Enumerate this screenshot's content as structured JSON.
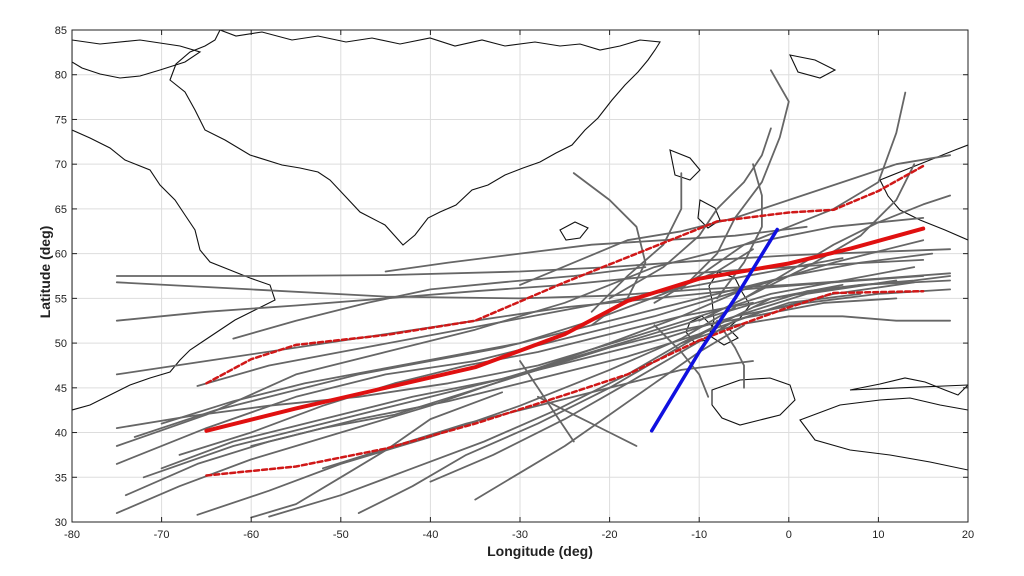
{
  "chart_data": {
    "type": "line",
    "title": "",
    "xlabel": "Longitude (deg)",
    "ylabel": "Latitude (deg)",
    "xlim": [
      -80,
      20
    ],
    "ylim": [
      30,
      85
    ],
    "xticks": [
      -80,
      -70,
      -60,
      -50,
      -40,
      -30,
      -20,
      -10,
      0,
      10,
      20
    ],
    "yticks": [
      30,
      35,
      40,
      45,
      50,
      55,
      60,
      65,
      70,
      75,
      80,
      85
    ],
    "grid": true,
    "legend": "none",
    "colors": {
      "tracks": "#666666",
      "mean_track": "#e01010",
      "envelope": "#d01818",
      "reference_line": "#1010e0",
      "coastline": "#111111",
      "grid": "#dddddd"
    },
    "series": [
      {
        "role": "mean track",
        "style": "solid",
        "points": [
          [
            -65,
            40.2
          ],
          [
            -55,
            42.7
          ],
          [
            -45,
            45.0
          ],
          [
            -35,
            47.3
          ],
          [
            -25,
            51.0
          ],
          [
            -18,
            54.7
          ],
          [
            -10,
            57.2
          ],
          [
            0,
            58.9
          ],
          [
            7,
            60.6
          ],
          [
            15,
            62.8
          ]
        ]
      },
      {
        "role": "upper bound",
        "style": "dashed",
        "points": [
          [
            -65,
            45.5
          ],
          [
            -60,
            48.2
          ],
          [
            -55,
            49.8
          ],
          [
            -45,
            50.9
          ],
          [
            -35,
            52.5
          ],
          [
            -25,
            56.8
          ],
          [
            -15,
            60.8
          ],
          [
            -8,
            63.6
          ],
          [
            0,
            64.6
          ],
          [
            5,
            64.9
          ],
          [
            10,
            67.0
          ],
          [
            15,
            69.8
          ]
        ]
      },
      {
        "role": "lower bound",
        "style": "dashed",
        "points": [
          [
            -65,
            35.2
          ],
          [
            -55,
            36.2
          ],
          [
            -45,
            38.2
          ],
          [
            -35,
            41.0
          ],
          [
            -25,
            44.2
          ],
          [
            -18,
            46.5
          ],
          [
            -10,
            50.3
          ],
          [
            -5,
            52.2
          ],
          [
            0,
            54.0
          ],
          [
            5,
            55.6
          ],
          [
            15,
            55.8
          ]
        ]
      },
      {
        "role": "reference line",
        "style": "solid",
        "points": [
          [
            -15.3,
            40.2
          ],
          [
            -10,
            49.0
          ],
          [
            -6,
            55.0
          ],
          [
            -1.3,
            62.7
          ]
        ]
      }
    ],
    "tracks": [
      [
        [
          -75,
          36.5
        ],
        [
          -65,
          40.5
        ],
        [
          -55,
          44.0
        ],
        [
          -45,
          46.5
        ],
        [
          -35,
          48.0
        ],
        [
          -25,
          50.5
        ],
        [
          -15,
          53.0
        ],
        [
          -5,
          56.0
        ],
        [
          5,
          59.0
        ],
        [
          15,
          61.5
        ]
      ],
      [
        [
          -75,
          38.5
        ],
        [
          -65,
          42.0
        ],
        [
          -55,
          46.5
        ],
        [
          -45,
          49.0
        ],
        [
          -35,
          51.5
        ],
        [
          -25,
          54.5
        ],
        [
          -15,
          58.5
        ],
        [
          -5,
          61.0
        ],
        [
          5,
          63.0
        ],
        [
          15,
          64.0
        ]
      ],
      [
        [
          -72,
          35.0
        ],
        [
          -62,
          38.5
        ],
        [
          -52,
          41.0
        ],
        [
          -42,
          43.5
        ],
        [
          -32,
          46.0
        ],
        [
          -22,
          49.0
        ],
        [
          -12,
          52.0
        ],
        [
          -2,
          55.0
        ],
        [
          8,
          56.5
        ],
        [
          18,
          57.0
        ]
      ],
      [
        [
          -75,
          57.5
        ],
        [
          -60,
          57.5
        ],
        [
          -45,
          57.6
        ],
        [
          -30,
          58.0
        ],
        [
          -20,
          58.5
        ],
        [
          -10,
          59.2
        ],
        [
          0,
          59.8
        ],
        [
          10,
          60.2
        ],
        [
          18,
          60.5
        ]
      ],
      [
        [
          -75,
          56.8
        ],
        [
          -60,
          56.0
        ],
        [
          -45,
          55.2
        ],
        [
          -30,
          55.0
        ],
        [
          -20,
          55.3
        ],
        [
          -10,
          56.0
        ],
        [
          0,
          56.5
        ],
        [
          10,
          57.2
        ],
        [
          18,
          57.8
        ]
      ],
      [
        [
          -75,
          52.5
        ],
        [
          -65,
          53.5
        ],
        [
          -55,
          54.2
        ],
        [
          -45,
          55.0
        ],
        [
          -35,
          55.8
        ],
        [
          -25,
          56.5
        ],
        [
          -15,
          57.5
        ],
        [
          -5,
          58.2
        ],
        [
          5,
          58.8
        ],
        [
          15,
          59.3
        ]
      ],
      [
        [
          -75,
          46.5
        ],
        [
          -65,
          48.0
        ],
        [
          -55,
          49.5
        ],
        [
          -45,
          51.0
        ],
        [
          -35,
          52.5
        ],
        [
          -25,
          54.0
        ],
        [
          -15,
          55.0
        ],
        [
          -5,
          56.0
        ],
        [
          5,
          56.8
        ],
        [
          15,
          57.5
        ]
      ],
      [
        [
          -74,
          33.0
        ],
        [
          -66,
          36.5
        ],
        [
          -58,
          39.0
        ],
        [
          -48,
          41.5
        ],
        [
          -38,
          43.5
        ],
        [
          -28,
          46.0
        ],
        [
          -18,
          48.5
        ],
        [
          -10,
          51.0
        ],
        [
          -3,
          53.5
        ],
        [
          5,
          55.5
        ],
        [
          14,
          56.8
        ]
      ],
      [
        [
          -75,
          31.0
        ],
        [
          -68,
          34.0
        ],
        [
          -60,
          37.0
        ],
        [
          -50,
          40.0
        ],
        [
          -40,
          43.0
        ],
        [
          -30,
          46.5
        ],
        [
          -20,
          50.0
        ],
        [
          -12,
          53.0
        ],
        [
          -5,
          56.0
        ]
      ],
      [
        [
          -66,
          30.8
        ],
        [
          -58,
          33.5
        ],
        [
          -50,
          36.5
        ],
        [
          -40,
          39.5
        ],
        [
          -30,
          43.0
        ],
        [
          -20,
          47.0
        ],
        [
          -12,
          50.5
        ],
        [
          -6,
          54.0
        ]
      ],
      [
        [
          -58,
          30.6
        ],
        [
          -50,
          33.0
        ],
        [
          -42,
          36.0
        ],
        [
          -34,
          39.0
        ],
        [
          -26,
          42.5
        ],
        [
          -18,
          46.5
        ],
        [
          -12,
          50.0
        ],
        [
          -6,
          53.0
        ],
        [
          2,
          55.5
        ],
        [
          12,
          57.0
        ]
      ],
      [
        [
          -48,
          31.0
        ],
        [
          -42,
          34.0
        ],
        [
          -36,
          37.5
        ],
        [
          -28,
          41.0
        ],
        [
          -20,
          45.0
        ],
        [
          -14,
          48.5
        ],
        [
          -8,
          52.0
        ],
        [
          -2,
          55.0
        ],
        [
          6,
          56.5
        ]
      ],
      [
        [
          -40,
          34.5
        ],
        [
          -33,
          37.5
        ],
        [
          -25,
          41.5
        ],
        [
          -18,
          45.5
        ],
        [
          -12,
          49.0
        ],
        [
          -6,
          52.5
        ],
        [
          0,
          54.5
        ],
        [
          8,
          55.5
        ]
      ],
      [
        [
          -35,
          32.5
        ],
        [
          -30,
          35.5
        ],
        [
          -25,
          38.5
        ],
        [
          -20,
          42.0
        ],
        [
          -15,
          45.5
        ],
        [
          -10,
          49.0
        ],
        [
          -5,
          52.0
        ]
      ],
      [
        [
          -73,
          39.5
        ],
        [
          -64,
          42.5
        ],
        [
          -56,
          44.5
        ],
        [
          -48,
          46.5
        ],
        [
          -40,
          48.0
        ],
        [
          -32,
          49.5
        ],
        [
          -24,
          51.5
        ],
        [
          -16,
          53.5
        ],
        [
          -8,
          55.5
        ],
        [
          0,
          57.5
        ],
        [
          8,
          59.0
        ],
        [
          16,
          60.0
        ]
      ],
      [
        [
          -70,
          41.0
        ],
        [
          -62,
          43.5
        ],
        [
          -54,
          45.5
        ],
        [
          -46,
          47.0
        ],
        [
          -38,
          48.5
        ],
        [
          -30,
          50.0
        ],
        [
          -22,
          52.5
        ],
        [
          -14,
          55.5
        ],
        [
          -8,
          58.0
        ],
        [
          -4,
          60.5
        ]
      ],
      [
        [
          -75,
          40.5
        ],
        [
          -67,
          41.8
        ],
        [
          -58,
          43.0
        ],
        [
          -48,
          44.0
        ],
        [
          -38,
          45.5
        ],
        [
          -28,
          47.5
        ],
        [
          -18,
          50.5
        ],
        [
          -10,
          53.0
        ],
        [
          -2,
          55.5
        ],
        [
          6,
          57.0
        ],
        [
          14,
          58.5
        ]
      ],
      [
        [
          -66,
          45.2
        ],
        [
          -58,
          47.5
        ],
        [
          -50,
          49.0
        ],
        [
          -42,
          50.5
        ],
        [
          -34,
          52.0
        ],
        [
          -26,
          53.5
        ],
        [
          -18,
          55.0
        ],
        [
          -10,
          56.5
        ],
        [
          -2,
          58.0
        ],
        [
          6,
          59.5
        ]
      ],
      [
        [
          -20,
          55.0
        ],
        [
          -14,
          58.5
        ],
        [
          -10,
          62.0
        ],
        [
          -8,
          65.0
        ],
        [
          -5,
          68.0
        ],
        [
          -3,
          71.0
        ],
        [
          -2,
          74.0
        ]
      ],
      [
        [
          -22,
          53.5
        ],
        [
          -18,
          57.5
        ],
        [
          -14,
          61.0
        ],
        [
          -12,
          65.0
        ],
        [
          -12,
          69.0
        ]
      ],
      [
        [
          -12,
          56.0
        ],
        [
          -8,
          60.0
        ],
        [
          -6,
          64.0
        ],
        [
          -3,
          68.0
        ],
        [
          -1,
          73.0
        ],
        [
          0,
          77.0
        ],
        [
          -2,
          80.5
        ]
      ],
      [
        [
          -8,
          55.0
        ],
        [
          -5,
          59.0
        ],
        [
          -3,
          63.0
        ],
        [
          -3,
          66.5
        ],
        [
          -4,
          70.0
        ]
      ],
      [
        [
          -15,
          54.5
        ],
        [
          -10,
          57.5
        ],
        [
          -5,
          61.0
        ],
        [
          0,
          63.0
        ],
        [
          5,
          65.0
        ],
        [
          10,
          68.0
        ],
        [
          12,
          73.5
        ],
        [
          13,
          78.0
        ]
      ],
      [
        [
          -10,
          52.5
        ],
        [
          -4,
          55.5
        ],
        [
          2,
          58.5
        ],
        [
          8,
          62.0
        ],
        [
          12,
          66.0
        ],
        [
          14,
          70.0
        ]
      ],
      [
        [
          -22,
          52.0
        ],
        [
          -18,
          55.0
        ],
        [
          -16,
          59.0
        ],
        [
          -17,
          63.0
        ],
        [
          -20,
          66.0
        ],
        [
          -24,
          69.0
        ]
      ],
      [
        [
          -5,
          55.0
        ],
        [
          0,
          58.0
        ],
        [
          5,
          61.0
        ],
        [
          10,
          63.5
        ],
        [
          15,
          65.5
        ],
        [
          18,
          66.5
        ]
      ],
      [
        [
          -15,
          52.0
        ],
        [
          -12,
          49.0
        ],
        [
          -10,
          46.5
        ],
        [
          -9,
          44.0
        ]
      ],
      [
        [
          -8,
          52.5
        ],
        [
          -6,
          49.5
        ],
        [
          -5,
          47.5
        ],
        [
          -5,
          45.0
        ]
      ],
      [
        [
          -28,
          44.0
        ],
        [
          -24,
          42.0
        ],
        [
          -20,
          40.0
        ],
        [
          -17,
          38.5
        ]
      ],
      [
        [
          -30,
          48.0
        ],
        [
          -28,
          45.0
        ],
        [
          -26,
          42.0
        ],
        [
          -24,
          39.0
        ]
      ],
      [
        [
          -60,
          30.5
        ],
        [
          -55,
          32.0
        ],
        [
          -50,
          35.0
        ],
        [
          -45,
          38.0
        ],
        [
          -40,
          41.5
        ],
        [
          -32,
          44.5
        ]
      ],
      [
        [
          -52,
          36.0
        ],
        [
          -44,
          38.5
        ],
        [
          -36,
          41.0
        ],
        [
          -28,
          43.0
        ],
        [
          -20,
          45.0
        ],
        [
          -12,
          47.0
        ],
        [
          -4,
          48.0
        ]
      ],
      [
        [
          -70,
          36.0
        ],
        [
          -62,
          39.0
        ],
        [
          -52,
          41.5
        ],
        [
          -42,
          44.0
        ],
        [
          -32,
          46.0
        ],
        [
          -22,
          48.5
        ],
        [
          -14,
          50.5
        ],
        [
          -6,
          53.0
        ],
        [
          2,
          54.5
        ],
        [
          10,
          55.5
        ],
        [
          18,
          56.0
        ]
      ],
      [
        [
          -45,
          58.0
        ],
        [
          -38,
          59.0
        ],
        [
          -30,
          60.0
        ],
        [
          -22,
          61.0
        ],
        [
          -14,
          61.5
        ],
        [
          -6,
          62.0
        ],
        [
          2,
          63.0
        ]
      ],
      [
        [
          -62,
          50.5
        ],
        [
          -55,
          52.5
        ],
        [
          -47,
          54.5
        ],
        [
          -40,
          56.0
        ],
        [
          -32,
          56.8
        ],
        [
          -24,
          57.5
        ],
        [
          -16,
          58.5
        ]
      ],
      [
        [
          -30,
          56.5
        ],
        [
          -24,
          59.0
        ],
        [
          -18,
          61.5
        ],
        [
          -12,
          62.5
        ],
        [
          -6,
          64.0
        ],
        [
          0,
          66.0
        ],
        [
          6,
          68.0
        ],
        [
          12,
          70.0
        ],
        [
          18,
          71.0
        ]
      ],
      [
        [
          -12,
          50.0
        ],
        [
          -6,
          52.0
        ],
        [
          0,
          53.0
        ],
        [
          6,
          53.0
        ],
        [
          12,
          52.5
        ],
        [
          18,
          52.5
        ]
      ],
      [
        [
          -4,
          54.0
        ],
        [
          2,
          55.8
        ],
        [
          8,
          56.5
        ],
        [
          14,
          57.0
        ],
        [
          18,
          57.5
        ]
      ],
      [
        [
          -60,
          38.5
        ],
        [
          -52,
          40.5
        ],
        [
          -44,
          42.0
        ],
        [
          -36,
          44.5
        ],
        [
          -28,
          47.0
        ],
        [
          -20,
          49.5
        ],
        [
          -12,
          51.5
        ],
        [
          -4,
          53.0
        ],
        [
          4,
          54.5
        ],
        [
          12,
          55.0
        ]
      ],
      [
        [
          -68,
          37.5
        ],
        [
          -60,
          40.0
        ],
        [
          -52,
          43.0
        ],
        [
          -44,
          45.5
        ],
        [
          -36,
          47.5
        ],
        [
          -28,
          49.0
        ],
        [
          -20,
          51.0
        ],
        [
          -12,
          53.0
        ],
        [
          -4,
          54.5
        ]
      ]
    ]
  }
}
